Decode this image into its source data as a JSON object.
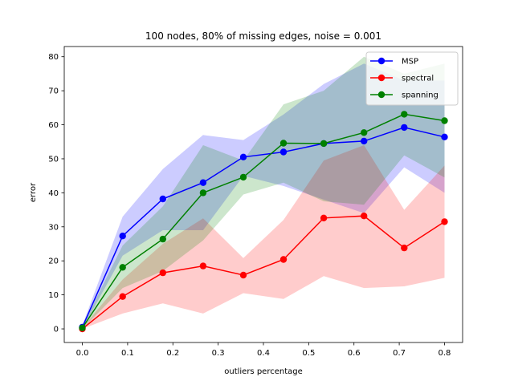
{
  "chart_data": {
    "type": "line",
    "title": "100 nodes, 80% of missing edges, noise = 0.001",
    "xlabel": "outliers percentage",
    "ylabel": "error",
    "xlim": [
      -0.04,
      0.84
    ],
    "ylim": [
      -4,
      83
    ],
    "xticks": [
      0.0,
      0.1,
      0.2,
      0.3,
      0.4,
      0.5,
      0.6,
      0.7,
      0.8
    ],
    "xtick_labels": [
      "0.0",
      "0.1",
      "0.2",
      "0.3",
      "0.4",
      "0.5",
      "0.6",
      "0.7",
      "0.8"
    ],
    "yticks": [
      0,
      10,
      20,
      30,
      40,
      50,
      60,
      70,
      80
    ],
    "ytick_labels": [
      "0",
      "10",
      "20",
      "30",
      "40",
      "50",
      "60",
      "70",
      "80"
    ],
    "grid": false,
    "legend_position": "top-right",
    "x": [
      0.0,
      0.0889,
      0.1778,
      0.2667,
      0.3556,
      0.4444,
      0.5333,
      0.6222,
      0.7111,
      0.8
    ],
    "series": [
      {
        "name": "MSP",
        "color": "#0000ff",
        "values": [
          0.5,
          27.3,
          38.2,
          43.0,
          50.5,
          52.0,
          54.5,
          55.2,
          59.2,
          56.4
        ],
        "upper": [
          1.0,
          33.0,
          47.0,
          57.0,
          55.5,
          63.0,
          72.0,
          78.0,
          73.0,
          73.0
        ],
        "lower": [
          0.0,
          21.5,
          29.0,
          29.0,
          45.0,
          42.0,
          38.0,
          34.0,
          47.5,
          40.0
        ]
      },
      {
        "name": "spectral",
        "color": "#ff0000",
        "values": [
          0.0,
          9.5,
          16.5,
          18.5,
          15.8,
          20.4,
          32.6,
          33.2,
          23.8,
          31.5
        ],
        "upper": [
          0.3,
          14.5,
          25.0,
          32.5,
          20.8,
          32.0,
          49.5,
          54.0,
          35.0,
          48.0
        ],
        "lower": [
          0.0,
          4.5,
          7.5,
          4.5,
          10.5,
          8.8,
          15.5,
          12.0,
          12.5,
          15.0
        ]
      },
      {
        "name": "spanning",
        "color": "#008000",
        "values": [
          0.3,
          18.1,
          26.4,
          40.0,
          44.6,
          54.6,
          54.5,
          57.7,
          63.1,
          61.2
        ],
        "upper": [
          0.8,
          24.5,
          36.0,
          54.0,
          49.5,
          66.0,
          70.0,
          80.0,
          75.0,
          78.0
        ],
        "lower": [
          0.0,
          12.0,
          17.0,
          26.0,
          39.5,
          43.0,
          37.5,
          36.5,
          51.0,
          44.5
        ]
      }
    ]
  }
}
